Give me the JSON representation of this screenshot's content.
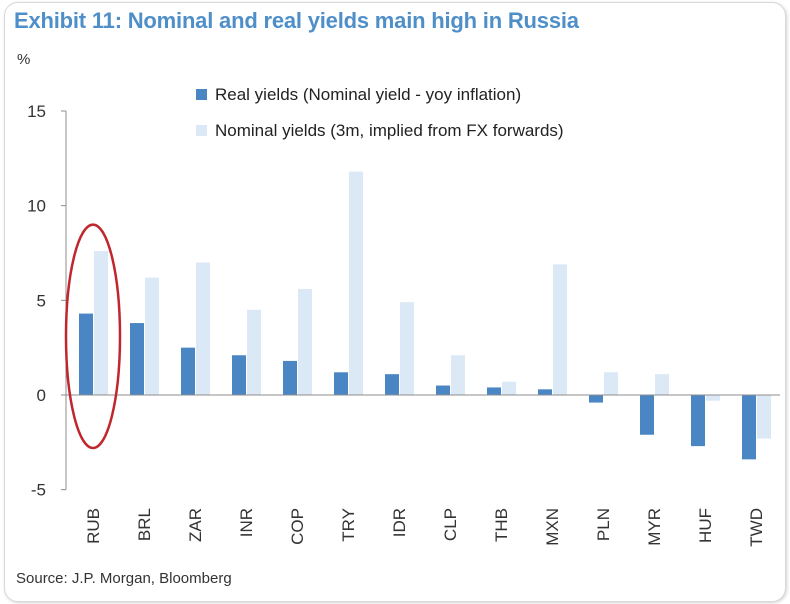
{
  "title": "Exhibit 11: Nominal and real yields main high in Russia",
  "source": "Source: J.P. Morgan, Bloomberg",
  "colors": {
    "real": "#4a86c4",
    "nominal": "#dbe8f5",
    "title": "#4f8fc9",
    "highlight": "#c0272d"
  },
  "chart_data": {
    "type": "bar",
    "ylabel": "%",
    "ylim": [
      -5,
      15
    ],
    "yticks": [
      -5,
      0,
      5,
      10,
      15
    ],
    "grid": false,
    "legend_position": "top-center",
    "highlight": "RUB",
    "categories": [
      "RUB",
      "BRL",
      "ZAR",
      "INR",
      "COP",
      "TRY",
      "IDR",
      "CLP",
      "THB",
      "MXN",
      "PLN",
      "MYR",
      "HUF",
      "TWD"
    ],
    "series": [
      {
        "name": "Real yields (Nominal yield - yoy inflation)",
        "values": [
          4.3,
          3.8,
          2.5,
          2.1,
          1.8,
          1.2,
          1.1,
          0.5,
          0.4,
          0.3,
          -0.4,
          -2.1,
          -2.7,
          -3.4
        ]
      },
      {
        "name": "Nominal yields (3m, implied from FX forwards)",
        "values": [
          7.6,
          6.2,
          7.0,
          4.5,
          5.6,
          11.8,
          4.9,
          2.1,
          0.7,
          6.9,
          1.2,
          1.1,
          -0.3,
          -2.3
        ]
      }
    ]
  }
}
